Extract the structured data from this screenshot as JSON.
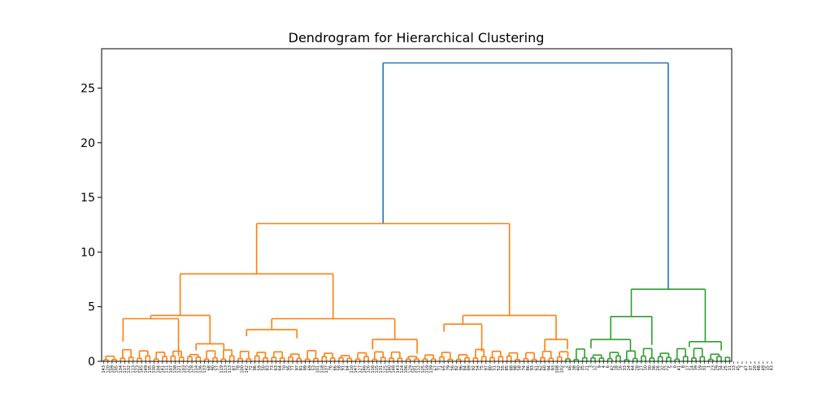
{
  "chart_data": {
    "type": "dendrogram",
    "title": "Dendrogram for Hierarchical Clustering",
    "xlabel": "",
    "ylabel": "",
    "ylim": [
      0,
      28.6
    ],
    "yticks": [
      0,
      5,
      10,
      15,
      20,
      25
    ],
    "leaf_count": 150,
    "grid": false,
    "colors": {
      "cluster_a": "#ff7f0e",
      "cluster_b": "#2ca02c",
      "above_threshold": "#1f77b4"
    },
    "merges": [
      {
        "cluster": "root",
        "color": "#1f77b4",
        "height": 27.3,
        "left_center": 66.5,
        "right_center": 134.4,
        "left_height": 12.6,
        "right_height": 6.6
      },
      {
        "cluster": "orange-top",
        "color": "#ff7f0e",
        "height": 12.6,
        "left_center": 36.4,
        "right_center": 96.6,
        "left_height": 8.0,
        "right_height": 4.2
      },
      {
        "cluster": "orange-left",
        "color": "#ff7f0e",
        "height": 8.0,
        "left_center": 18.2,
        "right_center": 54.6,
        "left_height": 4.2,
        "right_height": 3.9
      },
      {
        "cluster": "orange-a",
        "color": "#ff7f0e",
        "height": 4.2,
        "left_center": 11.2,
        "right_center": 25.3,
        "left_height": 3.9,
        "right_height": 1.6
      },
      {
        "cluster": "orange-a1",
        "color": "#ff7f0e",
        "height": 3.9,
        "left_center": 4.6,
        "right_center": 17.8,
        "left_height": 1.8,
        "right_height": 0.5
      },
      {
        "cluster": "orange-a2",
        "color": "#ff7f0e",
        "height": 1.6,
        "left_center": 22.0,
        "right_center": 28.6,
        "left_height": 1.0,
        "right_height": 1.0
      },
      {
        "cluster": "orange-b",
        "color": "#ff7f0e",
        "height": 3.9,
        "left_center": 40.0,
        "right_center": 69.3,
        "left_height": 2.9,
        "right_height": 2.0
      },
      {
        "cluster": "orange-b1",
        "color": "#ff7f0e",
        "height": 2.9,
        "left_center": 34.0,
        "right_center": 46.0,
        "left_height": 2.3,
        "right_height": 2.1
      },
      {
        "cluster": "orange-b2",
        "color": "#ff7f0e",
        "height": 2.0,
        "left_center": 64.0,
        "right_center": 74.6,
        "left_height": 1.1,
        "right_height": 0.7
      },
      {
        "cluster": "orange-c",
        "color": "#ff7f0e",
        "height": 4.2,
        "left_center": 85.5,
        "right_center": 107.7,
        "left_height": 3.4,
        "right_height": 2.0
      },
      {
        "cluster": "orange-c1",
        "color": "#ff7f0e",
        "height": 3.4,
        "left_center": 81.0,
        "right_center": 90.0,
        "left_height": 2.7,
        "right_height": 0.9
      },
      {
        "cluster": "orange-c2",
        "color": "#ff7f0e",
        "height": 2.0,
        "left_center": 105.0,
        "right_center": 110.4,
        "left_height": 0.9,
        "right_height": 1.1
      },
      {
        "cluster": "green-top",
        "color": "#2ca02c",
        "height": 6.6,
        "left_center": 125.6,
        "right_center": 143.2,
        "left_height": 4.1,
        "right_height": 1.8
      },
      {
        "cluster": "green-a",
        "color": "#2ca02c",
        "height": 4.1,
        "left_center": 120.7,
        "right_center": 130.5,
        "left_height": 2.0,
        "right_height": 1.5
      },
      {
        "cluster": "green-a1",
        "color": "#2ca02c",
        "height": 2.0,
        "left_center": 116.0,
        "right_center": 125.4,
        "left_height": 1.2,
        "right_height": 0.9
      },
      {
        "cluster": "green-b",
        "color": "#2ca02c",
        "height": 1.8,
        "left_center": 139.4,
        "right_center": 147.0,
        "left_height": 1.3,
        "right_height": 1.0
      }
    ],
    "leaf_labels": [
      "143",
      "120",
      "109",
      "105",
      "134",
      "117",
      "132",
      "113",
      "123",
      "145",
      "149",
      "135",
      "130",
      "104",
      "141",
      "111",
      "107",
      "138",
      "121",
      "103",
      "122",
      "128",
      "114",
      "136",
      "133",
      "68",
      "90",
      "57",
      "119",
      "113",
      "113",
      "87",
      "78",
      "100",
      "142",
      "72",
      "96",
      "59",
      "50",
      "83",
      "73",
      "63",
      "64",
      "70",
      "95",
      "77",
      "97",
      "81",
      "99",
      "69",
      "53",
      "101",
      "118",
      "137",
      "76",
      "66",
      "58",
      "91",
      "64",
      "110",
      "147",
      "127",
      "146",
      "126",
      "116",
      "115",
      "131",
      "125",
      "140",
      "148",
      "143",
      "124",
      "106",
      "129",
      "101",
      "112",
      "125",
      "119",
      "139",
      "67",
      "71",
      "65",
      "79",
      "56",
      "82",
      "96",
      "84",
      "89",
      "92",
      "54",
      "75",
      "97",
      "80",
      "51",
      "52",
      "55",
      "85",
      "88",
      "98",
      "58",
      "74",
      "86",
      "93",
      "61",
      "62",
      "60",
      "94",
      "93",
      "108",
      "102",
      "2",
      "46",
      "38",
      "40",
      "35",
      "21",
      "3",
      "12",
      "9",
      "4",
      "6",
      "42",
      "18",
      "16",
      "33",
      "24",
      "44",
      "28",
      "27",
      "10",
      "30",
      "36",
      "26",
      "32",
      "22",
      "5",
      "0",
      "41",
      "8",
      "17",
      "14",
      "39",
      "19",
      "31",
      "1",
      "23",
      "29",
      "34",
      "25",
      "11",
      "13",
      "45",
      "7",
      "47",
      "37",
      "20",
      "48",
      "49",
      "15",
      "43"
    ]
  }
}
